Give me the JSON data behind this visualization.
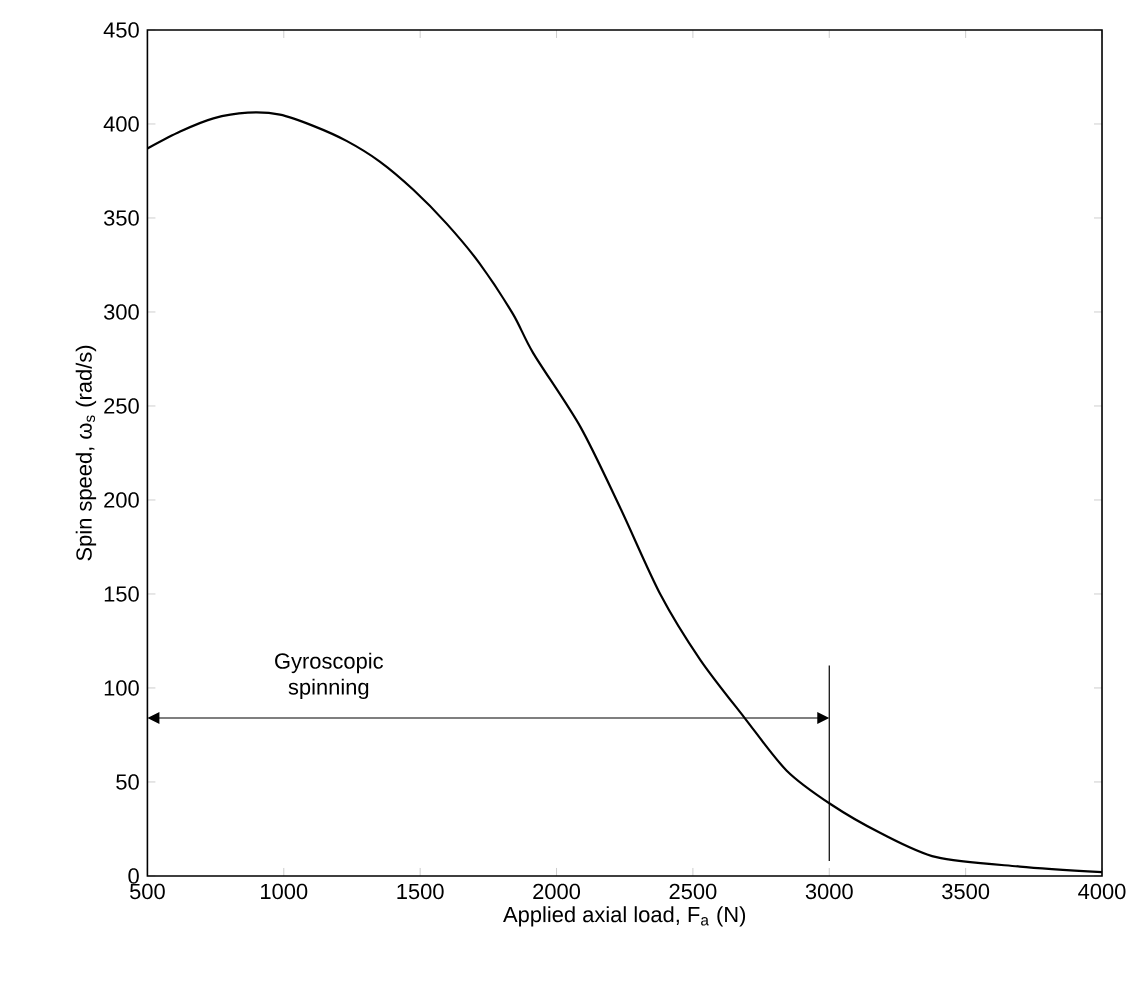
{
  "chart_data": {
    "type": "line",
    "xlabel": "Applied axial load, F$_{a}$ (N)",
    "ylabel": "Spin speed, ω$_{s}$ (rad/s)",
    "x": [
      500,
      620,
      742,
      868,
      986,
      1108,
      1230,
      1352,
      1475,
      1597,
      1717,
      1840,
      1915,
      2087,
      2233,
      2380,
      2527,
      2690,
      2844,
      3007,
      3186,
      3393,
      3699,
      4000
    ],
    "series": [
      {
        "color": "#000000",
        "values": [
          387,
          396,
          403,
          406,
          405,
          399,
          391,
          380,
          365,
          347,
          326,
          299,
          278,
          239,
          196,
          150,
          115,
          84,
          56,
          38,
          23,
          10,
          5,
          2
        ]
      }
    ],
    "xlim": [
      500,
      4000
    ],
    "ylim": [
      0,
      450
    ],
    "xticks": [
      500,
      1000,
      1500,
      2000,
      2500,
      3000,
      3500,
      4000
    ],
    "yticks": [
      0,
      50,
      100,
      150,
      200,
      250,
      300,
      350,
      400,
      450
    ],
    "ref_lines": [
      {
        "axis": "x",
        "value": 3000
      }
    ],
    "annotations": [
      "Gyroscopic spinning"
    ],
    "grid": false,
    "legend": false,
    "marker": "none",
    "line_style": "solid"
  }
}
